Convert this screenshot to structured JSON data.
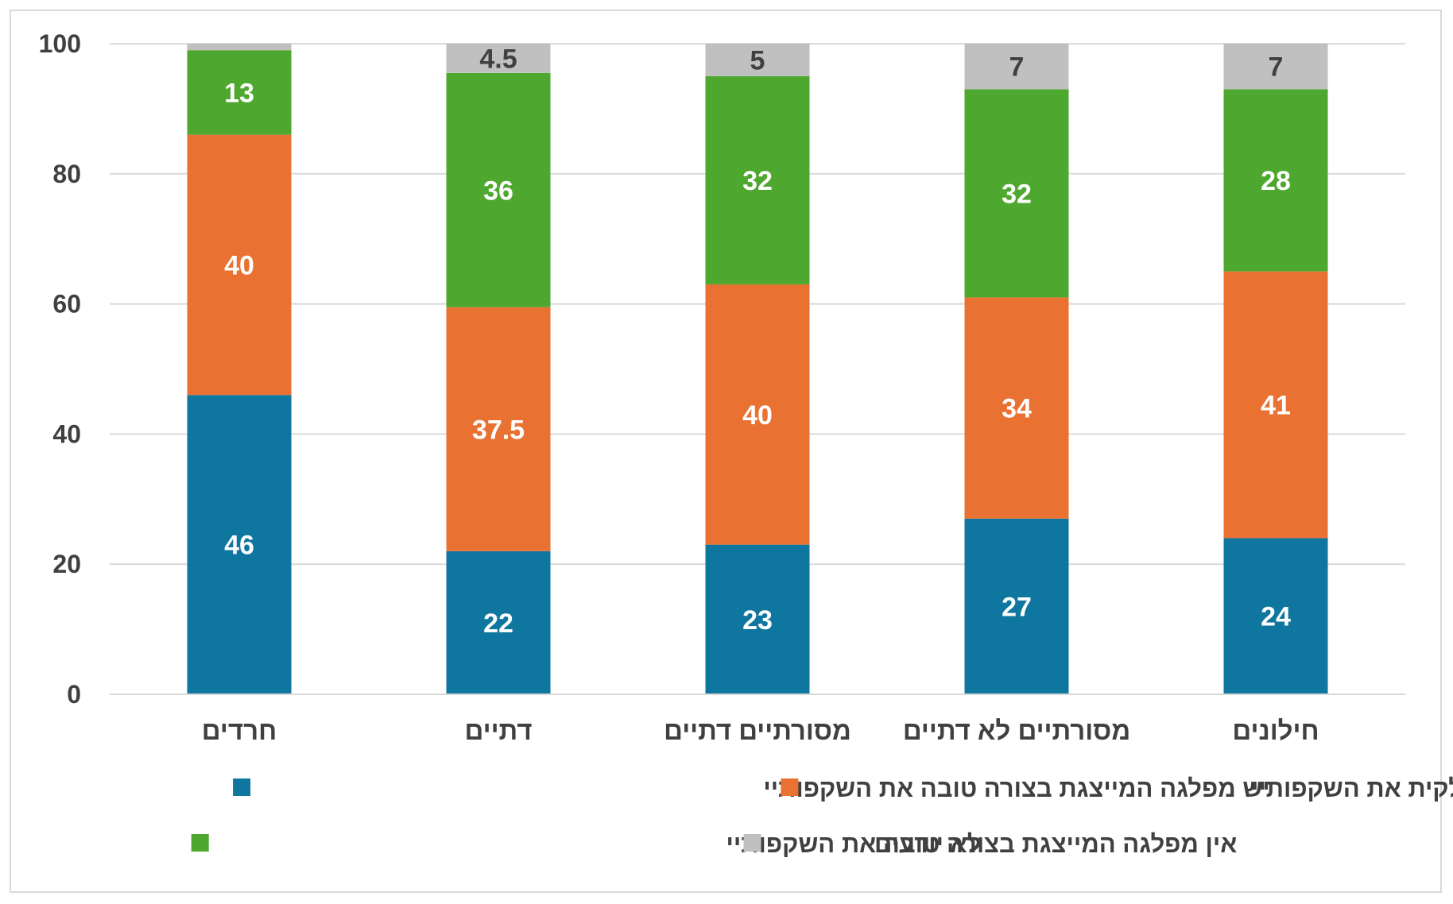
{
  "chart_data": {
    "type": "bar",
    "stacked": true,
    "ylim": [
      0,
      100
    ],
    "yticks": [
      0,
      20,
      40,
      60,
      80,
      100
    ],
    "grid": true,
    "legend_position": "bottom",
    "categories": [
      "חרדים",
      "דתיים",
      "מסורתיים דתיים",
      "מסורתיים לא דתיים",
      "חילונים"
    ],
    "series": [
      {
        "name": "יש מפלגה המייצגת בצורה טובה את השקפותיי",
        "color": "#0f76a0",
        "values": [
          46,
          22,
          23,
          27,
          24
        ],
        "labels": [
          "46",
          "22",
          "23",
          "27",
          "24"
        ]
      },
      {
        "name": "יש מפלגה המייצגת חלקית את השקפותיי",
        "color": "#e97232",
        "values": [
          40,
          37.5,
          40,
          34,
          41
        ],
        "labels": [
          "40",
          "37.5",
          "40",
          "34",
          "41"
        ]
      },
      {
        "name": "אין מפלגה המייצגת בצורה טובה את השקפותיי",
        "color": "#4ea72e",
        "values": [
          13,
          36,
          32,
          32,
          28
        ],
        "labels": [
          "13",
          "36",
          "32",
          "32",
          "28"
        ]
      },
      {
        "name": "לא יודעים",
        "color": "#c0c0c0",
        "values": [
          1,
          4.5,
          5,
          7,
          7
        ],
        "labels": [
          "",
          "4.5",
          "5",
          "7",
          "7"
        ]
      }
    ]
  }
}
